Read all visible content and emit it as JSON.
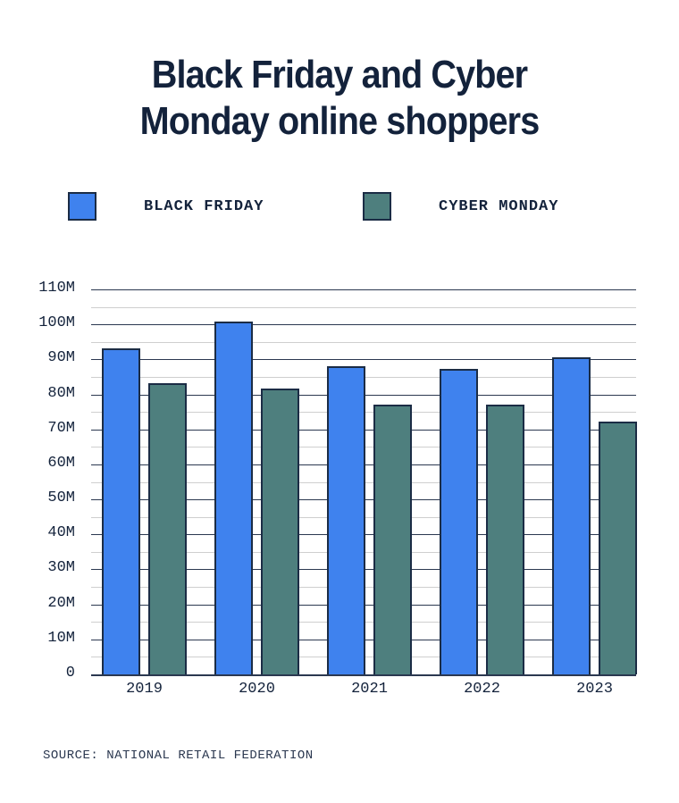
{
  "title_line1": "Black Friday and Cyber",
  "title_line2": "Monday online shoppers",
  "legend": [
    {
      "label": "BLACK FRIDAY",
      "color": "#3f82ee"
    },
    {
      "label": "CYBER MONDAY",
      "color": "#4e7f7e"
    }
  ],
  "source": "SOURCE: NATIONAL RETAIL FEDERATION",
  "chart_data": {
    "type": "bar",
    "title": "Black Friday and Cyber Monday online shoppers",
    "categories": [
      "2019",
      "2020",
      "2021",
      "2022",
      "2023"
    ],
    "series": [
      {
        "name": "BLACK FRIDAY",
        "color": "#3f82ee",
        "values": [
          93.2,
          100.7,
          88.0,
          87.2,
          90.6
        ]
      },
      {
        "name": "CYBER MONDAY",
        "color": "#4e7f7e",
        "values": [
          83.1,
          81.7,
          77.0,
          77.0,
          72.2
        ]
      }
    ],
    "xlabel": "",
    "ylabel": "",
    "yticks": [
      "0",
      "10M",
      "20M",
      "30M",
      "40M",
      "50M",
      "60M",
      "70M",
      "80M",
      "90M",
      "100M",
      "110M"
    ],
    "ylim": [
      0,
      110
    ],
    "unit": "millions of shoppers",
    "grid": true,
    "legend_position": "top",
    "source": "SOURCE: NATIONAL RETAIL FEDERATION"
  }
}
